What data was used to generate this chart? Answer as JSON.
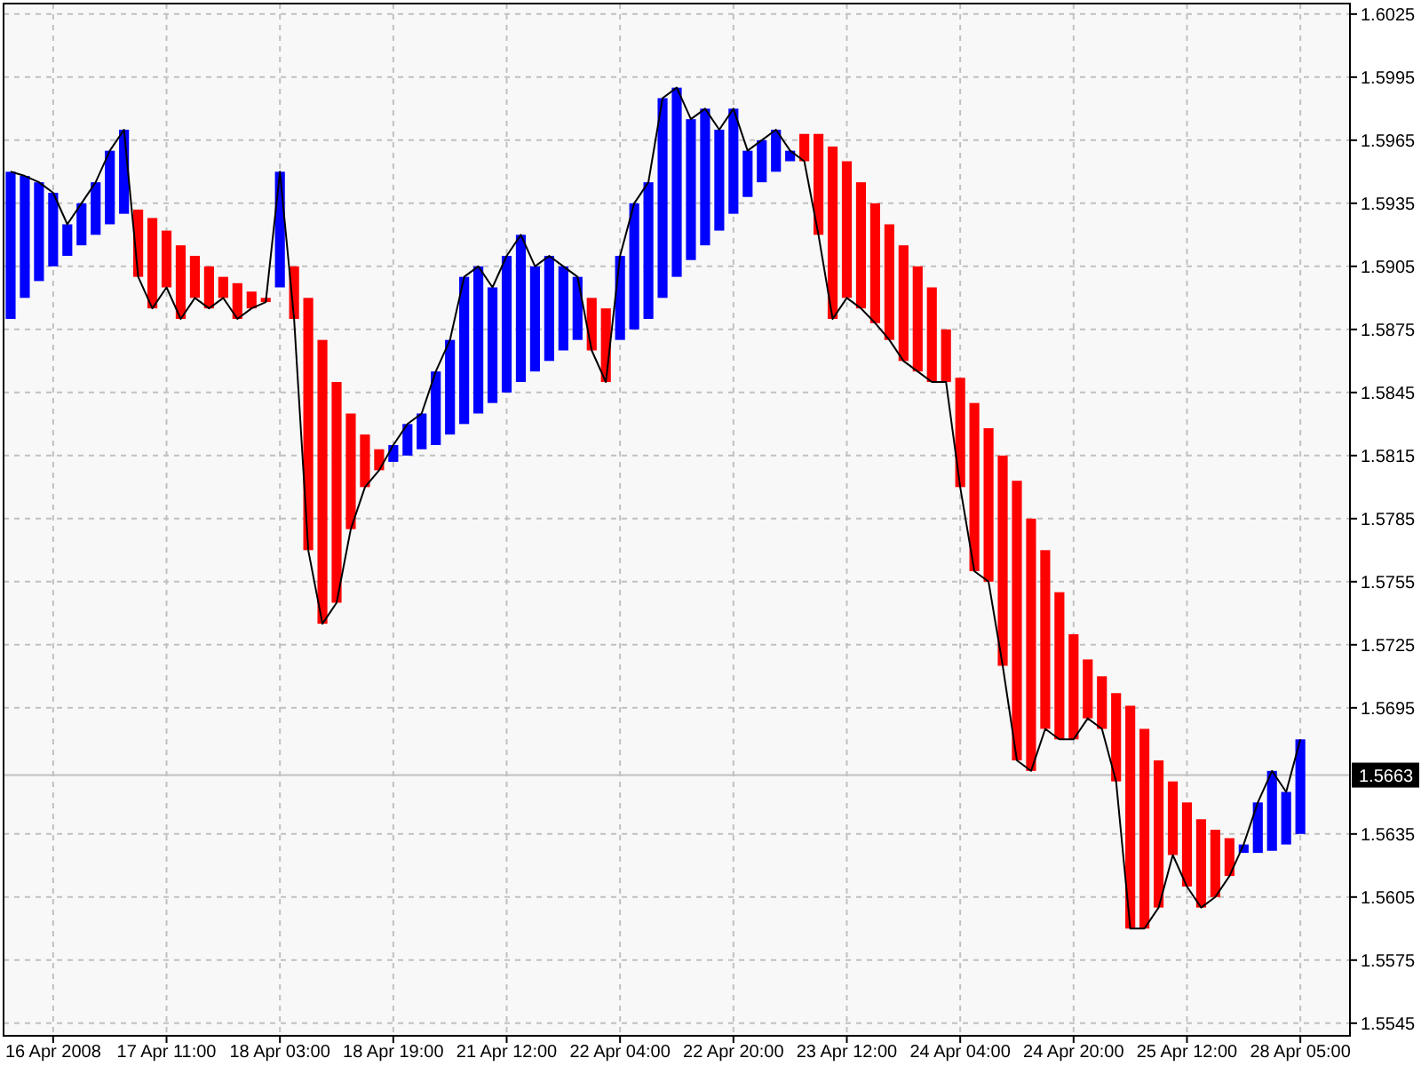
{
  "chart_data": {
    "type": "bar",
    "categories": [
      null,
      null,
      null,
      "16 Apr 2008",
      null,
      null,
      null,
      null,
      null,
      null,
      null,
      "17 Apr 11:00",
      null,
      null,
      null,
      null,
      null,
      null,
      null,
      "18 Apr 03:00",
      null,
      null,
      null,
      null,
      null,
      null,
      null,
      "18 Apr 19:00",
      null,
      null,
      null,
      null,
      null,
      null,
      null,
      "21 Apr 12:00",
      null,
      null,
      null,
      null,
      null,
      null,
      null,
      "22 Apr 04:00",
      null,
      null,
      null,
      null,
      null,
      null,
      null,
      "22 Apr 20:00",
      null,
      null,
      null,
      null,
      null,
      null,
      null,
      "23 Apr 12:00",
      null,
      null,
      null,
      null,
      null,
      null,
      null,
      "24 Apr 04:00",
      null,
      null,
      null,
      null,
      null,
      null,
      null,
      "24 Apr 20:00",
      null,
      null,
      null,
      null,
      null,
      null,
      null,
      "25 Apr 12:00",
      null,
      null,
      null,
      null,
      null,
      null,
      null,
      "28 Apr 05:00",
      null,
      null,
      null
    ],
    "series": [
      {
        "values": [
          0.007,
          0.0058,
          0.0047,
          0.0035,
          0.0015,
          0.002,
          0.0025,
          0.0035,
          0.004,
          -0.0032,
          -0.0043,
          -0.0027,
          -0.0035,
          -0.002,
          -0.002,
          -0.001,
          -0.0017,
          -0.0008,
          -0.0002,
          0.0055,
          -0.0025,
          -0.012,
          -0.0135,
          -0.0105,
          -0.0055,
          -0.0025,
          -0.001,
          0.0008,
          0.0015,
          0.0017,
          0.0035,
          0.0045,
          0.007,
          0.007,
          0.0055,
          0.0065,
          0.007,
          0.005,
          0.005,
          0.004,
          0.003,
          -0.0025,
          -0.0035,
          0.004,
          0.006,
          0.0065,
          0.0095,
          0.009,
          0.0067,
          0.0065,
          0.0048,
          0.005,
          0.0022,
          0.002,
          0.002,
          0.0005,
          -0.0013,
          -0.0048,
          -0.0082,
          -0.0065,
          -0.006,
          -0.0057,
          -0.0055,
          -0.0055,
          -0.005,
          -0.0045,
          -0.0025,
          -0.0052,
          -0.008,
          -0.0073,
          -0.01,
          -0.0133,
          -0.012,
          -0.0085,
          -0.007,
          -0.005,
          -0.0028,
          -0.0025,
          -0.0042,
          -0.0106,
          -0.0095,
          -0.007,
          -0.0035,
          -0.004,
          -0.0042,
          -0.0032,
          -0.0018,
          0.0004,
          0.0024,
          0.0038,
          0.0025,
          0.0045,
          null,
          null,
          null
        ],
        "base": [
          1.588,
          1.589,
          1.5898,
          1.5905,
          1.591,
          1.5915,
          1.592,
          1.5925,
          1.593,
          1.5932,
          1.5928,
          1.5922,
          1.5915,
          1.591,
          1.5905,
          1.59,
          1.5897,
          1.5893,
          1.589,
          1.5895,
          1.5905,
          1.589,
          1.587,
          1.585,
          1.5835,
          1.5825,
          1.5818,
          1.5812,
          1.5815,
          1.5818,
          1.582,
          1.5825,
          1.583,
          1.5835,
          1.584,
          1.5845,
          1.585,
          1.5855,
          1.586,
          1.5865,
          1.587,
          1.589,
          1.5885,
          1.587,
          1.5875,
          1.588,
          1.589,
          1.59,
          1.5908,
          1.5915,
          1.5922,
          1.593,
          1.5938,
          1.5945,
          1.595,
          1.5955,
          1.5968,
          1.5968,
          1.5962,
          1.5955,
          1.5945,
          1.5935,
          1.5925,
          1.5915,
          1.5905,
          1.5895,
          1.5875,
          1.5852,
          1.584,
          1.5828,
          1.5815,
          1.5803,
          1.5785,
          1.577,
          1.575,
          1.573,
          1.5718,
          1.571,
          1.5702,
          1.5696,
          1.5685,
          1.567,
          1.566,
          1.565,
          1.5642,
          1.5637,
          1.5633,
          1.5626,
          1.5626,
          1.5627,
          1.563,
          1.5635,
          null,
          null,
          null
        ],
        "colors": [
          "#0000ff",
          "#0000ff",
          "#0000ff",
          "#0000ff",
          "#0000ff",
          "#0000ff",
          "#0000ff",
          "#0000ff",
          "#0000ff",
          "#ff0000",
          "#ff0000",
          "#ff0000",
          "#ff0000",
          "#ff0000",
          "#ff0000",
          "#ff0000",
          "#ff0000",
          "#ff0000",
          "#ff0000",
          "#0000ff",
          "#ff0000",
          "#ff0000",
          "#ff0000",
          "#ff0000",
          "#ff0000",
          "#ff0000",
          "#ff0000",
          "#0000ff",
          "#0000ff",
          "#0000ff",
          "#0000ff",
          "#0000ff",
          "#0000ff",
          "#0000ff",
          "#0000ff",
          "#0000ff",
          "#0000ff",
          "#0000ff",
          "#0000ff",
          "#0000ff",
          "#0000ff",
          "#ff0000",
          "#ff0000",
          "#0000ff",
          "#0000ff",
          "#0000ff",
          "#0000ff",
          "#0000ff",
          "#0000ff",
          "#0000ff",
          "#0000ff",
          "#0000ff",
          "#0000ff",
          "#0000ff",
          "#0000ff",
          "#0000ff",
          "#ff0000",
          "#ff0000",
          "#ff0000",
          "#ff0000",
          "#ff0000",
          "#ff0000",
          "#ff0000",
          "#ff0000",
          "#ff0000",
          "#ff0000",
          "#ff0000",
          "#ff0000",
          "#ff0000",
          "#ff0000",
          "#ff0000",
          "#ff0000",
          "#ff0000",
          "#ff0000",
          "#ff0000",
          "#ff0000",
          "#ff0000",
          "#ff0000",
          "#ff0000",
          "#ff0000",
          "#ff0000",
          "#ff0000",
          "#ff0000",
          "#ff0000",
          "#ff0000",
          "#ff0000",
          "#ff0000",
          "#0000ff",
          "#0000ff",
          "#0000ff",
          "#0000ff",
          "#0000ff",
          null,
          null,
          null
        ]
      },
      {
        "type": "line",
        "color": "#000000",
        "values": [
          1.595,
          1.5948,
          1.5945,
          1.594,
          1.5925,
          1.5935,
          1.5945,
          1.596,
          1.597,
          1.59,
          1.5885,
          1.5895,
          1.588,
          1.589,
          1.5885,
          1.589,
          1.588,
          1.5885,
          1.5888,
          1.595,
          1.588,
          1.577,
          1.5735,
          1.5745,
          1.578,
          1.58,
          1.5808,
          1.582,
          1.583,
          1.5835,
          1.5855,
          1.587,
          1.59,
          1.5905,
          1.5895,
          1.591,
          1.592,
          1.5905,
          1.591,
          1.5905,
          1.59,
          1.5865,
          1.585,
          1.591,
          1.5935,
          1.5945,
          1.5985,
          1.599,
          1.5975,
          1.598,
          1.597,
          1.598,
          1.596,
          1.5965,
          1.597,
          1.596,
          1.5955,
          1.592,
          1.588,
          1.589,
          1.5885,
          1.5878,
          1.587,
          1.586,
          1.5855,
          1.585,
          1.585,
          1.58,
          1.576,
          1.5755,
          1.5715,
          1.567,
          1.5665,
          1.5685,
          1.568,
          1.568,
          1.569,
          1.5685,
          1.566,
          1.559,
          1.559,
          1.56,
          1.5625,
          1.561,
          1.56,
          1.5605,
          1.5615,
          1.563,
          1.565,
          1.5665,
          1.5655,
          1.568,
          null,
          null,
          null
        ]
      }
    ],
    "ylim": [
      1.5539,
      1.603
    ],
    "yticks": [
      1.5545,
      1.5575,
      1.5605,
      1.5635,
      1.5695,
      1.5725,
      1.5755,
      1.5785,
      1.5815,
      1.5845,
      1.5875,
      1.5905,
      1.5935,
      1.5965,
      1.5995,
      1.6025
    ],
    "ref_lines": [
      {
        "axis": "y",
        "value": 1.5663,
        "label": "1.5663",
        "color": "#c0c0c0"
      }
    ],
    "grid": true
  }
}
